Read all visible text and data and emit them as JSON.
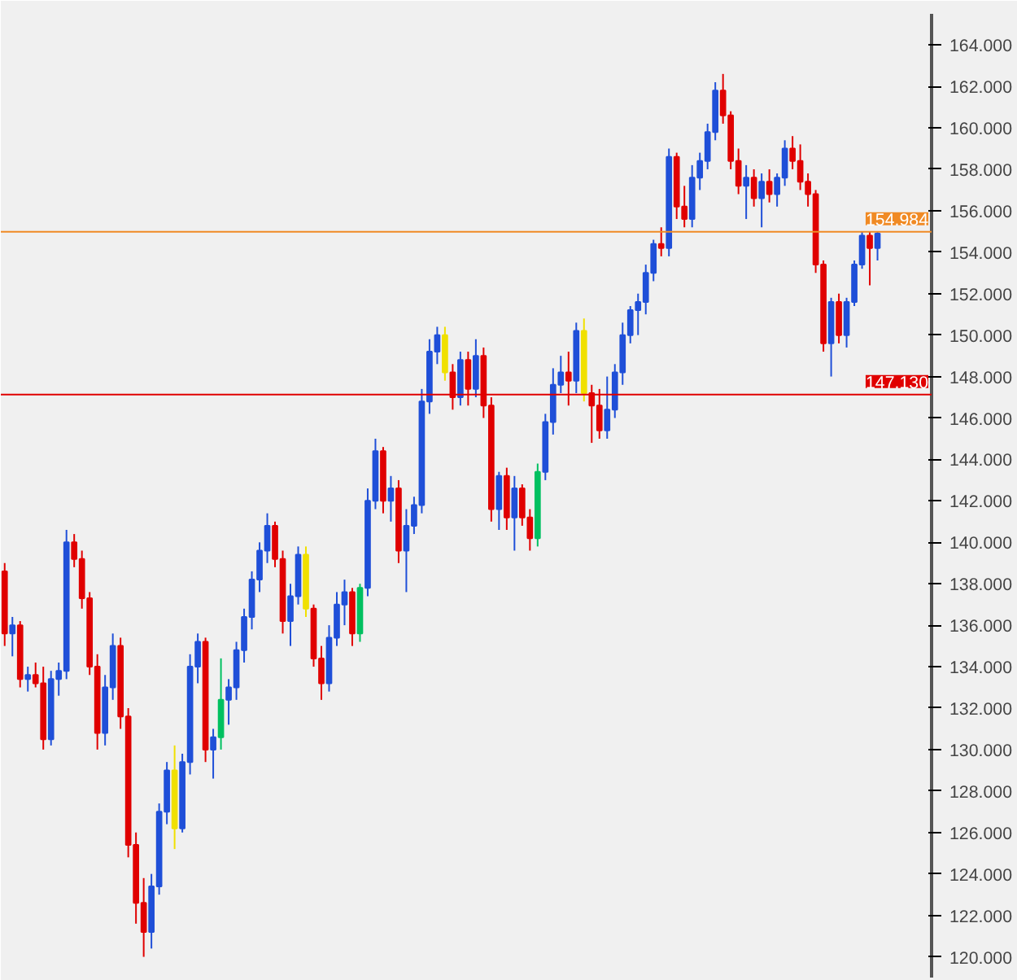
{
  "chart_data": {
    "type": "candlestick",
    "categories": [
      null,
      null,
      null,
      null,
      null,
      null,
      null,
      null,
      null,
      null,
      null,
      null,
      null,
      null,
      null,
      null,
      null,
      null,
      null,
      null,
      null,
      null,
      null,
      null,
      null,
      null,
      null,
      null,
      null,
      null,
      null,
      null,
      null,
      null,
      null,
      null,
      null,
      null,
      null,
      null,
      null,
      null,
      null,
      null,
      null,
      null,
      null,
      null,
      null,
      null,
      null,
      null,
      null,
      null,
      null,
      null,
      null,
      null,
      null,
      null,
      null,
      null,
      null,
      null,
      null,
      null,
      null,
      null,
      null,
      null,
      null,
      null,
      null,
      null,
      null,
      null,
      null,
      null,
      null,
      null,
      null,
      null,
      null,
      null,
      null,
      null,
      null,
      null,
      null,
      null,
      null,
      null,
      null,
      null,
      null,
      null,
      null,
      null,
      null,
      null,
      null,
      null,
      null,
      null,
      null,
      null,
      null,
      null,
      null,
      null,
      null,
      null,
      null,
      null
    ],
    "ohlc": [
      [
        138.6,
        139.0,
        135.0,
        135.6
      ],
      [
        135.6,
        136.4,
        134.5,
        136.0
      ],
      [
        136.0,
        136.2,
        133.0,
        133.4
      ],
      [
        133.4,
        134.0,
        132.8,
        133.6
      ],
      [
        133.6,
        134.2,
        133.0,
        133.2
      ],
      [
        133.2,
        134.0,
        130.0,
        130.5
      ],
      [
        130.5,
        133.8,
        130.2,
        133.4
      ],
      [
        133.4,
        134.2,
        132.6,
        133.8
      ],
      [
        133.8,
        140.6,
        133.4,
        140.0
      ],
      [
        140.0,
        140.4,
        138.8,
        139.2
      ],
      [
        139.2,
        139.6,
        136.8,
        137.3
      ],
      [
        137.3,
        137.6,
        133.6,
        134.0
      ],
      [
        134.0,
        134.6,
        130.0,
        130.8
      ],
      [
        130.8,
        133.6,
        130.2,
        133.0
      ],
      [
        133.0,
        135.6,
        132.4,
        135.0
      ],
      [
        135.0,
        135.4,
        131.0,
        131.6
      ],
      [
        131.6,
        132.0,
        124.8,
        125.4
      ],
      [
        125.4,
        126.0,
        121.6,
        122.6
      ],
      [
        122.6,
        123.8,
        120.0,
        121.2
      ],
      [
        121.2,
        124.0,
        120.4,
        123.4
      ],
      [
        123.4,
        127.4,
        123.0,
        127.0
      ],
      [
        127.0,
        129.4,
        126.4,
        129.0
      ],
      [
        129.0,
        130.2,
        125.2,
        126.2
      ],
      [
        126.2,
        129.8,
        126.0,
        129.4
      ],
      [
        129.4,
        134.6,
        128.8,
        134.0
      ],
      [
        134.0,
        135.6,
        133.2,
        135.2
      ],
      [
        135.2,
        135.4,
        129.4,
        130.0
      ],
      [
        130.0,
        131.0,
        128.6,
        130.6
      ],
      [
        130.6,
        134.4,
        130.0,
        132.4
      ],
      [
        132.4,
        133.4,
        131.2,
        133.0
      ],
      [
        133.0,
        135.2,
        132.4,
        134.8
      ],
      [
        134.8,
        136.8,
        134.2,
        136.4
      ],
      [
        136.4,
        138.6,
        135.8,
        138.2
      ],
      [
        138.2,
        140.0,
        137.6,
        139.6
      ],
      [
        139.6,
        141.4,
        139.0,
        140.8
      ],
      [
        140.8,
        141.0,
        138.8,
        139.2
      ],
      [
        139.2,
        139.6,
        135.6,
        136.2
      ],
      [
        136.2,
        138.0,
        135.0,
        137.4
      ],
      [
        137.4,
        139.8,
        137.0,
        139.4
      ],
      [
        139.4,
        139.8,
        136.4,
        136.8
      ],
      [
        136.8,
        137.0,
        134.0,
        134.4
      ],
      [
        134.4,
        135.0,
        132.4,
        133.2
      ],
      [
        133.2,
        136.0,
        132.8,
        135.4
      ],
      [
        135.4,
        137.6,
        135.0,
        137.0
      ],
      [
        137.0,
        138.2,
        136.0,
        137.6
      ],
      [
        137.6,
        137.8,
        135.0,
        135.6
      ],
      [
        135.6,
        138.0,
        135.2,
        137.8
      ],
      [
        137.8,
        142.6,
        137.4,
        142.0
      ],
      [
        142.0,
        145.0,
        141.6,
        144.4
      ],
      [
        144.4,
        144.6,
        141.4,
        142.0
      ],
      [
        142.0,
        143.2,
        141.0,
        142.6
      ],
      [
        142.6,
        143.0,
        139.0,
        139.6
      ],
      [
        139.6,
        141.6,
        137.6,
        140.8
      ],
      [
        140.8,
        142.2,
        140.4,
        141.8
      ],
      [
        141.8,
        147.4,
        141.4,
        146.8
      ],
      [
        146.8,
        149.8,
        146.2,
        149.2
      ],
      [
        149.2,
        150.4,
        148.6,
        150.0
      ],
      [
        150.0,
        150.4,
        147.8,
        148.2
      ],
      [
        148.2,
        148.6,
        146.4,
        147.0
      ],
      [
        147.0,
        149.2,
        146.6,
        148.8
      ],
      [
        148.8,
        149.2,
        146.6,
        147.4
      ],
      [
        147.4,
        149.8,
        147.0,
        149.0
      ],
      [
        149.0,
        149.4,
        146.0,
        146.6
      ],
      [
        146.6,
        147.0,
        141.0,
        141.6
      ],
      [
        141.6,
        143.4,
        140.6,
        143.2
      ],
      [
        143.2,
        143.6,
        140.6,
        141.2
      ],
      [
        141.2,
        143.2,
        139.6,
        142.6
      ],
      [
        142.6,
        142.8,
        140.8,
        141.2
      ],
      [
        141.2,
        141.6,
        139.6,
        140.2
      ],
      [
        140.2,
        143.8,
        139.8,
        143.4
      ],
      [
        143.4,
        146.2,
        143.0,
        145.8
      ],
      [
        145.8,
        148.4,
        145.2,
        147.6
      ],
      [
        147.6,
        149.0,
        147.2,
        148.2
      ],
      [
        148.2,
        149.2,
        146.6,
        147.8
      ],
      [
        147.8,
        150.6,
        147.2,
        150.2
      ],
      [
        150.2,
        150.8,
        146.8,
        147.2
      ],
      [
        147.2,
        147.6,
        144.8,
        146.6
      ],
      [
        146.6,
        147.4,
        145.0,
        145.4
      ],
      [
        145.4,
        148.0,
        145.0,
        146.4
      ],
      [
        146.4,
        148.6,
        146.0,
        148.2
      ],
      [
        148.2,
        150.6,
        147.6,
        150.0
      ],
      [
        150.0,
        151.4,
        149.6,
        151.2
      ],
      [
        151.2,
        152.0,
        150.0,
        151.6
      ],
      [
        151.6,
        153.4,
        151.0,
        153.0
      ],
      [
        153.0,
        154.6,
        152.6,
        154.4
      ],
      [
        154.4,
        155.2,
        153.8,
        154.2
      ],
      [
        154.2,
        159.0,
        153.8,
        158.6
      ],
      [
        158.6,
        158.8,
        155.6,
        156.2
      ],
      [
        156.2,
        157.2,
        155.2,
        155.6
      ],
      [
        155.6,
        158.2,
        155.2,
        157.6
      ],
      [
        157.6,
        158.8,
        157.0,
        158.4
      ],
      [
        158.4,
        160.2,
        158.0,
        159.8
      ],
      [
        159.8,
        162.2,
        159.4,
        161.8
      ],
      [
        161.8,
        162.6,
        160.2,
        160.6
      ],
      [
        160.6,
        160.8,
        158.0,
        158.4
      ],
      [
        158.4,
        159.0,
        156.8,
        157.2
      ],
      [
        157.2,
        158.2,
        155.6,
        157.6
      ],
      [
        157.6,
        158.0,
        156.2,
        156.6
      ],
      [
        156.6,
        157.8,
        155.2,
        157.4
      ],
      [
        157.4,
        158.0,
        156.4,
        156.8
      ],
      [
        156.8,
        157.8,
        156.2,
        157.6
      ],
      [
        157.6,
        159.4,
        157.2,
        159.0
      ],
      [
        159.0,
        159.6,
        158.0,
        158.4
      ],
      [
        158.4,
        159.2,
        157.0,
        157.4
      ],
      [
        157.4,
        157.8,
        156.2,
        156.8
      ],
      [
        156.8,
        157.0,
        153.0,
        153.4
      ],
      [
        153.4,
        153.6,
        149.2,
        149.6
      ],
      [
        149.6,
        151.8,
        148.0,
        151.6
      ],
      [
        151.6,
        152.0,
        149.6,
        150.0
      ],
      [
        150.0,
        151.8,
        149.4,
        151.6
      ],
      [
        151.6,
        153.6,
        151.4,
        153.4
      ],
      [
        153.4,
        155.0,
        153.2,
        154.8
      ],
      [
        154.8,
        155.0,
        152.4,
        154.2
      ],
      [
        154.2,
        155.0,
        153.6,
        154.9
      ]
    ],
    "colors": [
      "#e00000",
      "#1f4fd8",
      "#e00000",
      "#1f4fd8",
      "#e00000",
      "#e00000",
      "#1f4fd8",
      "#1f4fd8",
      "#1f4fd8",
      "#e00000",
      "#e00000",
      "#e00000",
      "#e00000",
      "#1f4fd8",
      "#1f4fd8",
      "#e00000",
      "#e00000",
      "#e00000",
      "#e00000",
      "#1f4fd8",
      "#1f4fd8",
      "#1f4fd8",
      "#f0e000",
      "#1f4fd8",
      "#1f4fd8",
      "#1f4fd8",
      "#e00000",
      "#1f4fd8",
      "#00c060",
      "#1f4fd8",
      "#1f4fd8",
      "#1f4fd8",
      "#1f4fd8",
      "#1f4fd8",
      "#1f4fd8",
      "#e00000",
      "#e00000",
      "#1f4fd8",
      "#1f4fd8",
      "#f0e000",
      "#e00000",
      "#e00000",
      "#1f4fd8",
      "#1f4fd8",
      "#1f4fd8",
      "#e00000",
      "#00c060",
      "#1f4fd8",
      "#1f4fd8",
      "#e00000",
      "#1f4fd8",
      "#e00000",
      "#1f4fd8",
      "#1f4fd8",
      "#1f4fd8",
      "#1f4fd8",
      "#1f4fd8",
      "#f0e000",
      "#e00000",
      "#1f4fd8",
      "#e00000",
      "#1f4fd8",
      "#e00000",
      "#e00000",
      "#1f4fd8",
      "#e00000",
      "#1f4fd8",
      "#e00000",
      "#e00000",
      "#00c060",
      "#1f4fd8",
      "#1f4fd8",
      "#1f4fd8",
      "#e00000",
      "#1f4fd8",
      "#f0e000",
      "#e00000",
      "#e00000",
      "#1f4fd8",
      "#1f4fd8",
      "#1f4fd8",
      "#1f4fd8",
      "#1f4fd8",
      "#1f4fd8",
      "#1f4fd8",
      "#e00000",
      "#1f4fd8",
      "#e00000",
      "#e00000",
      "#1f4fd8",
      "#1f4fd8",
      "#1f4fd8",
      "#1f4fd8",
      "#e00000",
      "#e00000",
      "#e00000",
      "#1f4fd8",
      "#e00000",
      "#1f4fd8",
      "#e00000",
      "#1f4fd8",
      "#1f4fd8",
      "#e00000",
      "#e00000",
      "#e00000",
      "#e00000",
      "#e00000",
      "#1f4fd8",
      "#e00000",
      "#1f4fd8",
      "#1f4fd8",
      "#1f4fd8",
      "#e00000",
      "#1f4fd8"
    ],
    "ylim": [
      119,
      165.5
    ],
    "yticks": [
      {
        "value": 120,
        "label": "120.000"
      },
      {
        "value": 122,
        "label": "122.000"
      },
      {
        "value": 124,
        "label": "124.000"
      },
      {
        "value": 126,
        "label": "126.000"
      },
      {
        "value": 128,
        "label": "128.000"
      },
      {
        "value": 130,
        "label": "130.000"
      },
      {
        "value": 132,
        "label": "132.000"
      },
      {
        "value": 134,
        "label": "134.000"
      },
      {
        "value": 136,
        "label": "136.000"
      },
      {
        "value": 138,
        "label": "138.000"
      },
      {
        "value": 140,
        "label": "140.000"
      },
      {
        "value": 142,
        "label": "142.000"
      },
      {
        "value": 144,
        "label": "144.000"
      },
      {
        "value": 146,
        "label": "146.000"
      },
      {
        "value": 148,
        "label": "148.000"
      },
      {
        "value": 150,
        "label": "150.000"
      },
      {
        "value": 152,
        "label": "152.000"
      },
      {
        "value": 154,
        "label": "154.000"
      },
      {
        "value": 156,
        "label": "156.000"
      },
      {
        "value": 158,
        "label": "158.000"
      },
      {
        "value": 160,
        "label": "160.000"
      },
      {
        "value": 162,
        "label": "162.000"
      },
      {
        "value": 164,
        "label": "164.000"
      }
    ],
    "tick_labels": "y",
    "ref_lines": [
      {
        "axis": "y",
        "value": 154.984,
        "label": "154.984",
        "color": "#f08a24"
      },
      {
        "axis": "y",
        "value": 147.13,
        "label": "147.130",
        "color": "#e00000"
      }
    ]
  }
}
